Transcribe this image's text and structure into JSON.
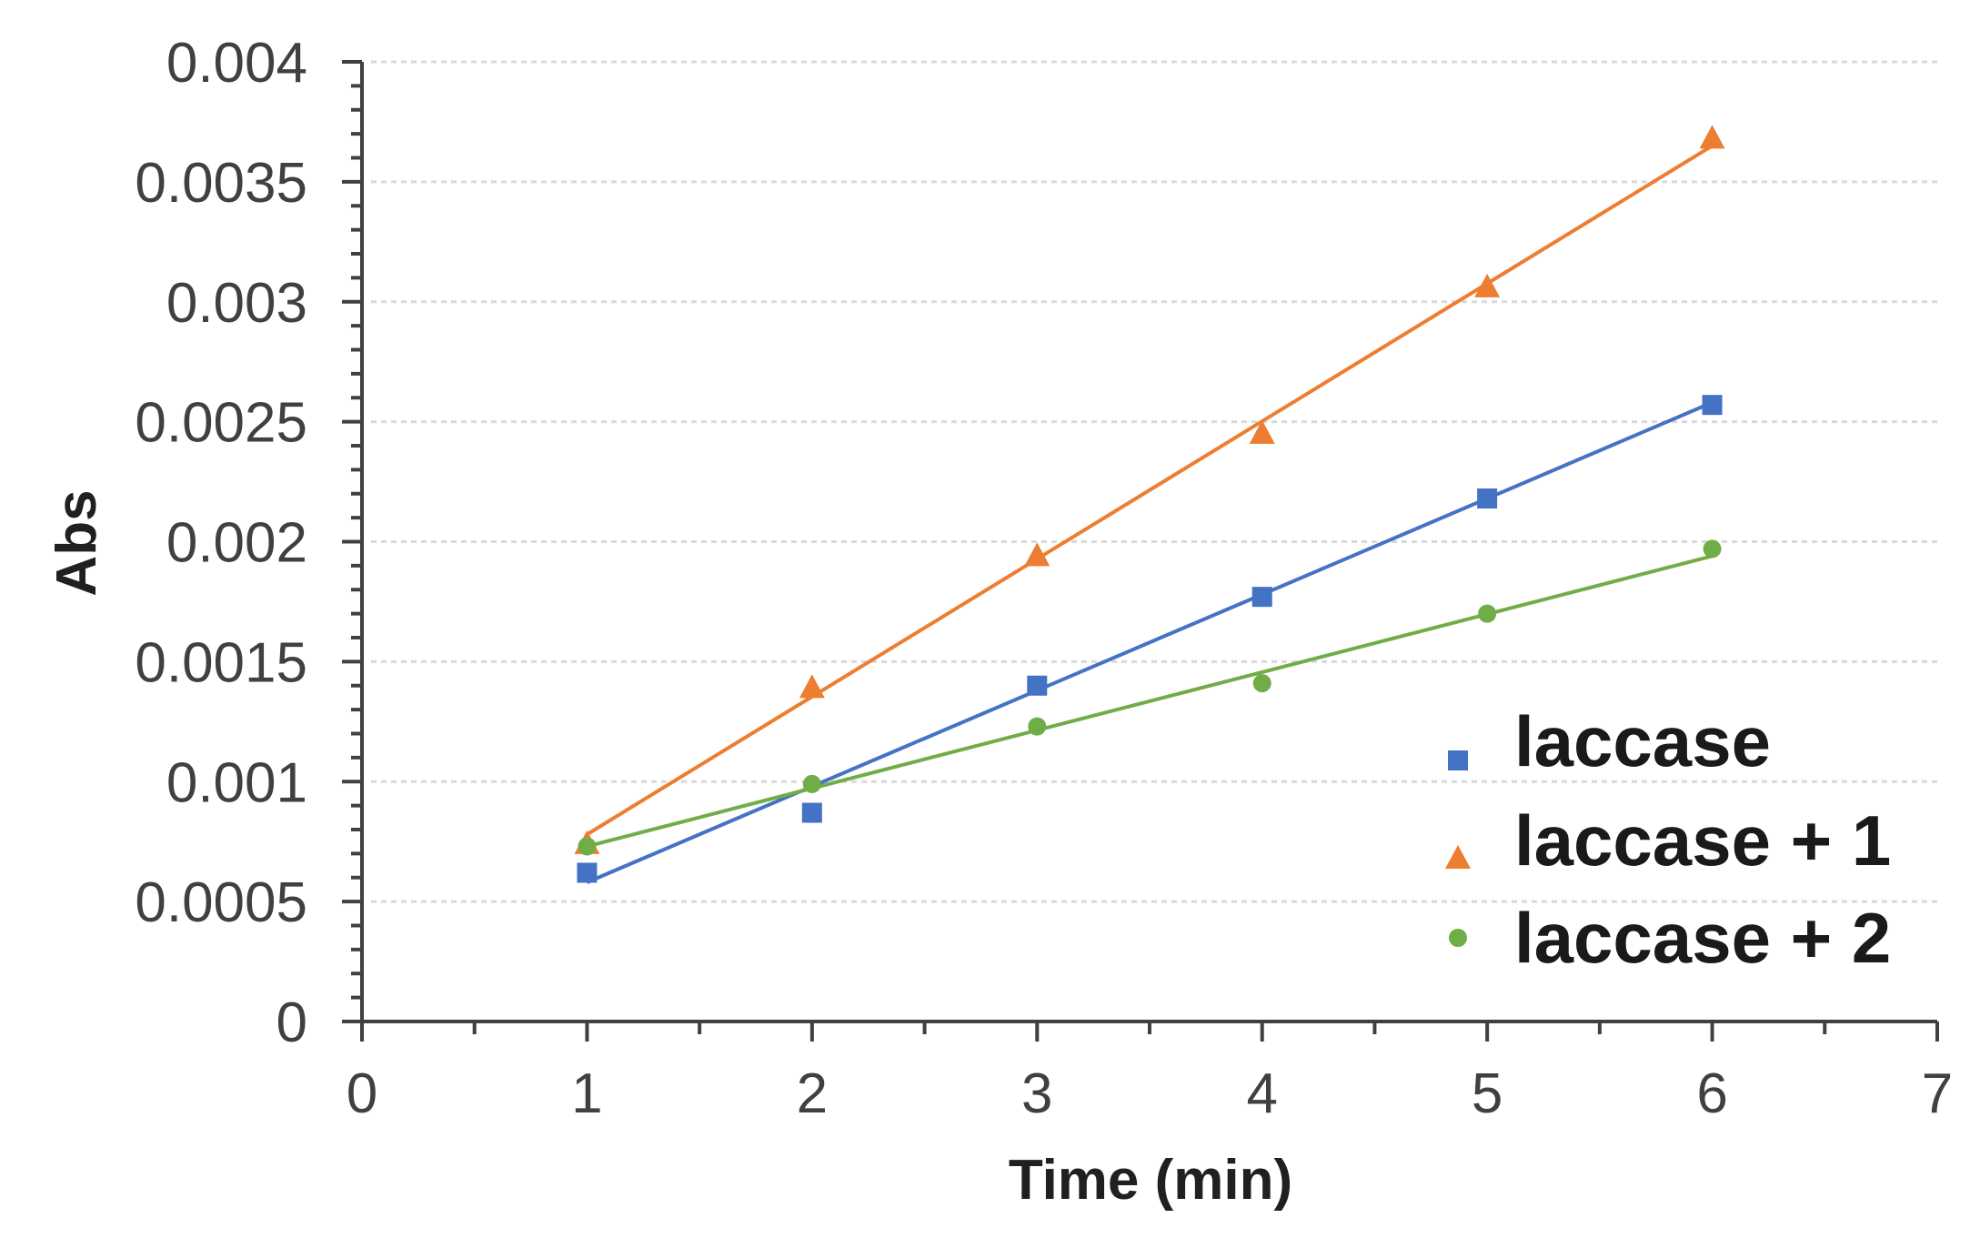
{
  "chart_data": {
    "type": "scatter",
    "title": "",
    "xlabel": "Time (min)",
    "ylabel": "Abs",
    "xlim": [
      0,
      7
    ],
    "ylim": [
      0,
      0.004
    ],
    "x_ticks": [
      "0",
      "1",
      "2",
      "3",
      "4",
      "5",
      "6",
      "7"
    ],
    "y_ticks": [
      "0",
      "0.0005",
      "0.001",
      "0.0015",
      "0.002",
      "0.0025",
      "0.003",
      "0.0035",
      "0.004"
    ],
    "grid": true,
    "legend_position": "bottom-right",
    "series": [
      {
        "name": "laccase",
        "marker": "square",
        "color": "#4472C4",
        "x": [
          1,
          2,
          3,
          4,
          5,
          6
        ],
        "values": [
          0.00062,
          0.00087,
          0.0014,
          0.00177,
          0.00218,
          0.00257
        ],
        "trendline": [
          0.00058,
          0.00258
        ]
      },
      {
        "name": "laccase + 1",
        "marker": "triangle",
        "color": "#ED7D31",
        "x": [
          1,
          2,
          3,
          4,
          5,
          6
        ],
        "values": [
          0.00074,
          0.00139,
          0.00194,
          0.00245,
          0.00306,
          0.00368
        ],
        "trendline": [
          0.00078,
          0.00365
        ]
      },
      {
        "name": "laccase + 2",
        "marker": "circle",
        "color": "#70AD47",
        "x": [
          1,
          2,
          3,
          4,
          5,
          6
        ],
        "values": [
          0.00073,
          0.00099,
          0.00123,
          0.00141,
          0.0017,
          0.00197
        ],
        "trendline": [
          0.00073,
          0.00194
        ]
      }
    ]
  }
}
